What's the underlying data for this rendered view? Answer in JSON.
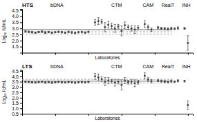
{
  "chart_data": [
    {
      "type": "scatter",
      "title": "HTS",
      "y_label": "Log₁₀ IU/mL",
      "x_label": "Laboratories",
      "xlim": [
        0,
        51.5
      ],
      "xticks": [
        0,
        10,
        20,
        30,
        40,
        50
      ],
      "tick_labels": "y",
      "ylim": [
        1.0,
        4.6
      ],
      "yticks": [
        1.5,
        {
          "value": 2.0,
          "label": "2.0"
        },
        2.5,
        {
          "value": 3.0,
          "label": "3.0"
        },
        3.5,
        {
          "value": 4.0,
          "label": "4.0"
        },
        4.5
      ],
      "reference_lines": [
        {
          "value": 2.9,
          "color": "#666666",
          "line_style": "solid"
        },
        {
          "value": 2.72,
          "color": "#aaaaaa",
          "line_style": "dashed"
        },
        {
          "value": 2.54,
          "color": "#aaaaaa",
          "line_style": "dashed"
        }
      ],
      "series": [
        {
          "name": "bDNA",
          "color": "#444444",
          "marker": "circle",
          "x": [
            1,
            2,
            3,
            4,
            5,
            6,
            7,
            8,
            9,
            10,
            11,
            12,
            13,
            14,
            15,
            16,
            17,
            18,
            19,
            20
          ],
          "values": [
            2.75,
            2.72,
            2.68,
            2.65,
            2.7,
            2.73,
            2.66,
            2.7,
            2.64,
            2.68,
            2.72,
            2.69,
            2.65,
            2.71,
            2.67,
            2.63,
            2.68,
            2.7,
            2.66,
            2.72
          ],
          "errors": [
            0.08,
            0.06,
            0.07,
            0.05,
            0.06,
            0.07,
            0.08,
            0.06,
            0.07,
            0.05,
            0.06,
            0.07,
            0.05,
            0.06,
            0.07,
            0.06,
            0.05,
            0.07,
            0.06,
            0.05
          ]
        },
        {
          "name": "CTM",
          "color": "#444444",
          "marker": "circle",
          "x": [
            22,
            23,
            24,
            25,
            26,
            27,
            28,
            29,
            30,
            31,
            32,
            33,
            34,
            35
          ],
          "values": [
            3.5,
            3.6,
            3.55,
            3.1,
            3.3,
            3.2,
            3.0,
            3.15,
            2.8,
            3.25,
            3.1,
            3.0,
            2.9,
            3.05
          ],
          "errors": [
            0.22,
            0.28,
            0.18,
            0.38,
            0.28,
            0.22,
            0.32,
            0.18,
            0.42,
            0.28,
            0.18,
            0.22,
            0.32,
            0.18
          ]
        },
        {
          "name": "CAM",
          "color": "#444444",
          "marker": "circle",
          "x": [
            37,
            38,
            39
          ],
          "values": [
            3.35,
            3.1,
            2.9
          ],
          "errors": [
            0.28,
            0.18,
            0.14
          ]
        },
        {
          "name": "RealT",
          "color": "#444444",
          "marker": "circle",
          "x": [
            41,
            42,
            43,
            44,
            45,
            46,
            47
          ],
          "values": [
            3.05,
            3.0,
            2.98,
            2.95,
            3.0,
            2.97,
            3.03
          ],
          "errors": [
            0.1,
            0.09,
            0.1,
            0.09,
            0.1,
            0.08,
            0.1
          ]
        },
        {
          "name": "INH",
          "color": "#444444",
          "marker": "circle",
          "x": [
            49,
            50
          ],
          "values": [
            3.0,
            1.8
          ],
          "errors": [
            0.08,
            0.6
          ]
        }
      ]
    },
    {
      "type": "scatter",
      "title": "LTS",
      "y_label": "Log₁₀ IU/mL",
      "x_label": "Laboratories",
      "xlim": [
        0,
        51.5
      ],
      "xticks": [
        0,
        10,
        20,
        30,
        40,
        50
      ],
      "tick_labels": "y",
      "ylim": [
        0.5,
        4.6
      ],
      "yticks": [
        0.5,
        {
          "value": 1.0,
          "label": "1.0"
        },
        1.5,
        {
          "value": 2.0,
          "label": "2.0"
        },
        2.5,
        {
          "value": 3.0,
          "label": "3.0"
        },
        3.5,
        {
          "value": 4.0,
          "label": "4.0"
        },
        4.5
      ],
      "reference_lines": [
        {
          "value": 3.55,
          "color": "#666666",
          "line_style": "solid"
        },
        {
          "value": 3.72,
          "color": "#aaaaaa",
          "line_style": "dashed"
        },
        {
          "value": 3.38,
          "color": "#aaaaaa",
          "line_style": "dashed"
        }
      ],
      "series": [
        {
          "name": "bDNA",
          "color": "#444444",
          "marker": "circle",
          "x": [
            1,
            2,
            3,
            4,
            5,
            6,
            7,
            8,
            9,
            10,
            11,
            12,
            13,
            14,
            15,
            16,
            17,
            18,
            19,
            20
          ],
          "values": [
            3.5,
            3.48,
            3.45,
            3.42,
            3.47,
            3.5,
            3.43,
            3.47,
            3.41,
            3.45,
            3.49,
            3.46,
            3.42,
            3.48,
            3.44,
            3.4,
            3.45,
            3.47,
            3.43,
            3.49
          ],
          "errors": [
            0.07,
            0.06,
            0.07,
            0.05,
            0.06,
            0.07,
            0.08,
            0.06,
            0.07,
            0.05,
            0.06,
            0.07,
            0.05,
            0.06,
            0.07,
            0.06,
            0.05,
            0.07,
            0.06,
            0.05
          ]
        },
        {
          "name": "CTM",
          "color": "#444444",
          "marker": "circle",
          "x": [
            22,
            23,
            24,
            25,
            26,
            27,
            28,
            29,
            30,
            31,
            32,
            33,
            34,
            35
          ],
          "values": [
            4.0,
            3.9,
            3.75,
            3.5,
            3.6,
            3.55,
            3.4,
            3.5,
            3.2,
            3.6,
            3.45,
            3.5,
            3.35,
            3.45
          ],
          "errors": [
            0.28,
            0.32,
            0.22,
            0.38,
            0.28,
            0.18,
            0.32,
            0.22,
            0.48,
            0.28,
            0.18,
            0.22,
            0.32,
            0.18
          ]
        },
        {
          "name": "CAM",
          "color": "#444444",
          "marker": "circle",
          "x": [
            37,
            38,
            39
          ],
          "values": [
            4.05,
            3.7,
            3.55
          ],
          "errors": [
            0.28,
            0.18,
            0.14
          ]
        },
        {
          "name": "RealT",
          "color": "#444444",
          "marker": "circle",
          "x": [
            41,
            42,
            43,
            44,
            45,
            46,
            47
          ],
          "values": [
            3.6,
            3.55,
            3.52,
            3.48,
            3.55,
            3.5,
            3.58
          ],
          "errors": [
            0.1,
            0.09,
            0.1,
            0.09,
            0.1,
            0.08,
            0.1
          ]
        },
        {
          "name": "INH",
          "color": "#444444",
          "marker": "circle",
          "x": [
            49,
            50
          ],
          "values": [
            3.55,
            1.3
          ],
          "errors": [
            0.08,
            0.4
          ]
        }
      ]
    }
  ]
}
